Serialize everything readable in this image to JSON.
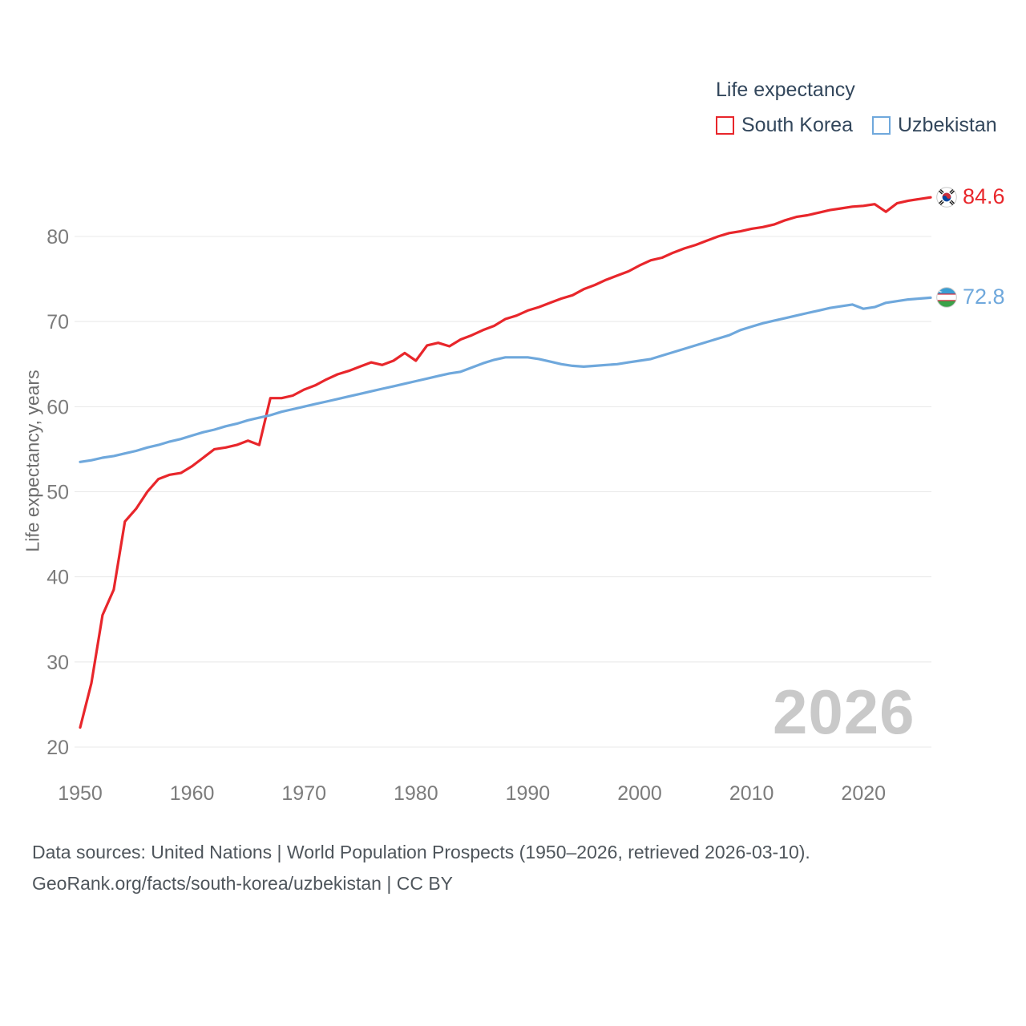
{
  "legend": {
    "title": "Life expectancy",
    "items": [
      {
        "label": "South Korea"
      },
      {
        "label": "Uzbekistan"
      }
    ]
  },
  "watermark": "2026",
  "footer": {
    "line1": "Data sources: United Nations | World Population Prospects (1950–2026, retrieved 2026-03-10).",
    "line2": "GeoRank.org/facts/south-korea/uzbekistan | CC BY"
  },
  "chart_data": {
    "type": "line",
    "title": "Life expectancy",
    "xlabel": "",
    "ylabel": "Life expectancy, years",
    "grid": "horizontal",
    "legend_position": "top-right",
    "yticks": [
      20,
      30,
      40,
      50,
      60,
      70,
      80
    ],
    "xticks": [
      1950,
      1960,
      1970,
      1980,
      1990,
      2000,
      2010,
      2020
    ],
    "x": [
      1950,
      1951,
      1952,
      1953,
      1954,
      1955,
      1956,
      1957,
      1958,
      1959,
      1960,
      1961,
      1962,
      1963,
      1964,
      1965,
      1966,
      1967,
      1968,
      1969,
      1970,
      1971,
      1972,
      1973,
      1974,
      1975,
      1976,
      1977,
      1978,
      1979,
      1980,
      1981,
      1982,
      1983,
      1984,
      1985,
      1986,
      1987,
      1988,
      1989,
      1990,
      1991,
      1992,
      1993,
      1994,
      1995,
      1996,
      1997,
      1998,
      1999,
      2000,
      2001,
      2002,
      2003,
      2004,
      2005,
      2006,
      2007,
      2008,
      2009,
      2010,
      2011,
      2012,
      2013,
      2014,
      2015,
      2016,
      2017,
      2018,
      2019,
      2020,
      2021,
      2022,
      2023,
      2024,
      2025,
      2026
    ],
    "series": [
      {
        "name": "South Korea",
        "color": "#e8262b",
        "end_label": "84.6",
        "values": [
          22.3,
          27.5,
          35.5,
          38.5,
          46.5,
          48.0,
          50.0,
          51.5,
          52.0,
          52.2,
          53.0,
          54.0,
          55.0,
          55.2,
          55.5,
          56.0,
          55.5,
          61.0,
          61.0,
          61.3,
          62.0,
          62.5,
          63.2,
          63.8,
          64.2,
          64.7,
          65.2,
          64.9,
          65.4,
          66.3,
          65.4,
          67.2,
          67.5,
          67.1,
          67.9,
          68.4,
          69.0,
          69.5,
          70.3,
          70.7,
          71.3,
          71.7,
          72.2,
          72.7,
          73.1,
          73.8,
          74.3,
          74.9,
          75.4,
          75.9,
          76.6,
          77.2,
          77.5,
          78.1,
          78.6,
          79.0,
          79.5,
          80.0,
          80.4,
          80.6,
          80.9,
          81.1,
          81.4,
          81.9,
          82.3,
          82.5,
          82.8,
          83.1,
          83.3,
          83.5,
          83.6,
          83.8,
          82.9,
          83.9,
          84.2,
          84.4,
          84.6
        ]
      },
      {
        "name": "Uzbekistan",
        "color": "#6fa8dc",
        "end_label": "72.8",
        "values": [
          53.5,
          53.7,
          54.0,
          54.2,
          54.5,
          54.8,
          55.2,
          55.5,
          55.9,
          56.2,
          56.6,
          57.0,
          57.3,
          57.7,
          58.0,
          58.4,
          58.7,
          59.0,
          59.4,
          59.7,
          60.0,
          60.3,
          60.6,
          60.9,
          61.2,
          61.5,
          61.8,
          62.1,
          62.4,
          62.7,
          63.0,
          63.3,
          63.6,
          63.9,
          64.1,
          64.6,
          65.1,
          65.5,
          65.8,
          65.8,
          65.8,
          65.6,
          65.3,
          65.0,
          64.8,
          64.7,
          64.8,
          64.9,
          65.0,
          65.2,
          65.4,
          65.6,
          66.0,
          66.4,
          66.8,
          67.2,
          67.6,
          68.0,
          68.4,
          69.0,
          69.4,
          69.8,
          70.1,
          70.4,
          70.7,
          71.0,
          71.3,
          71.6,
          71.8,
          72.0,
          71.5,
          71.7,
          72.2,
          72.4,
          72.6,
          72.7,
          72.8
        ]
      }
    ]
  }
}
